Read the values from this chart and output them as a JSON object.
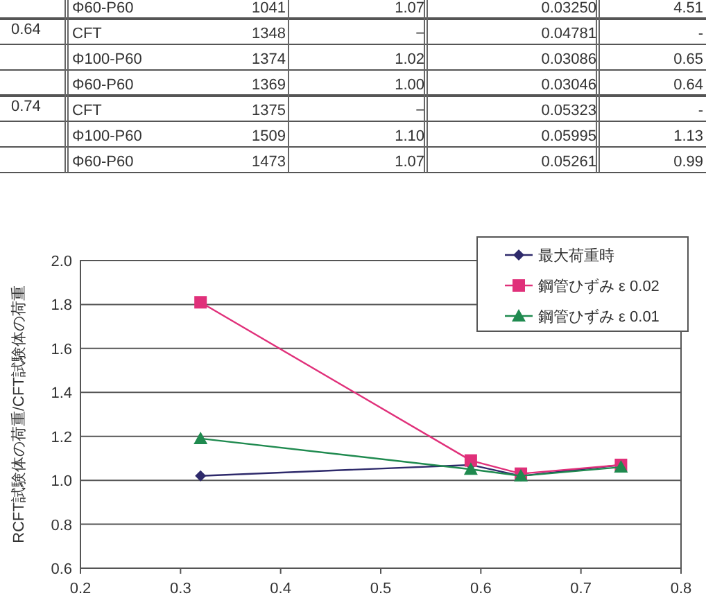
{
  "chart_data": [
    {
      "type": "other",
      "annotations": [
        "Φ60-P60",
        "1041",
        "1.07",
        "0.03250",
        "4.51",
        "CFT",
        "1348",
        "−",
        "0.04781",
        "-",
        "Φ100-P60",
        "1374",
        "1.02",
        "0.03086",
        "0.65",
        "Φ60-P60",
        "1369",
        "1.00",
        "0.03046",
        "0.64",
        "CFT",
        "1375",
        "−",
        "0.05323",
        "-",
        "Φ100-P60",
        "1509",
        "1.10",
        "0.05995",
        "1.13",
        "Φ60-P60",
        "1473",
        "1.07",
        "0.05261",
        "0.99",
        "0.64",
        "0.74"
      ]
    },
    {
      "type": "line",
      "ylabel": "RCFT試験体の荷重/CFT試験体の荷重",
      "x": [
        0.32,
        0.59,
        0.64,
        0.74
      ],
      "series": [
        {
          "name": "最大荷重時",
          "color": "#2e2a6b",
          "marker": "diamond",
          "values": [
            1.02,
            1.07,
            1.02,
            1.07
          ]
        },
        {
          "name": "鋼管ひずみ ε 0.02",
          "color": "#e0307a",
          "marker": "square",
          "values": [
            1.81,
            1.09,
            1.03,
            1.07
          ]
        },
        {
          "name": "鋼管ひずみ ε 0.01",
          "color": "#1f8a4f",
          "marker": "triangle",
          "values": [
            1.19,
            1.05,
            1.02,
            1.06
          ]
        }
      ],
      "xlim": [
        0.2,
        0.8
      ],
      "xticks": [
        0.2,
        0.3,
        0.4,
        0.5,
        0.6,
        0.7,
        0.8
      ],
      "ylim": [
        0.6,
        2.0
      ],
      "yticks": [
        0.6,
        0.8,
        {
          "value": 1.0,
          "label": "1.0"
        },
        1.2,
        1.4,
        1.6,
        1.8,
        {
          "value": 2.0,
          "label": "2.0"
        }
      ],
      "grid": "y",
      "legend": "top right",
      "line_style": "solid"
    }
  ]
}
